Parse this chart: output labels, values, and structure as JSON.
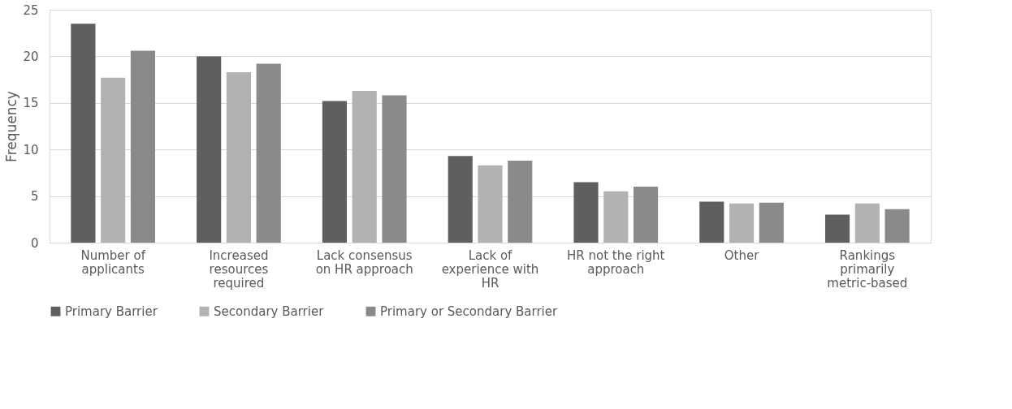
{
  "chart_data": {
    "type": "bar",
    "ylabel": "Frequency",
    "categories": [
      "Number of applicants",
      "Increased resources required",
      "Lack consensus on HR approach",
      "Lack of experience with HR",
      "HR not the right approach",
      "Other",
      "Rankings primarily metric-based"
    ],
    "series": [
      {
        "name": "Primary Barrier",
        "color": "#5f5f5f",
        "values": [
          23.5,
          20.0,
          15.2,
          9.3,
          6.5,
          4.4,
          3.0
        ]
      },
      {
        "name": "Secondary Barrier",
        "color": "#b2b2b2",
        "values": [
          17.7,
          18.3,
          16.3,
          8.3,
          5.5,
          4.2,
          4.2
        ]
      },
      {
        "name": "Primary or Secondary Barrier",
        "color": "#8a8a8a",
        "values": [
          20.6,
          19.2,
          15.8,
          8.8,
          6.0,
          4.3,
          3.6
        ]
      }
    ],
    "ylim": [
      0,
      25
    ],
    "yticks": [
      0,
      5,
      10,
      15,
      20,
      25
    ],
    "grid": "y",
    "legend": "bottom"
  }
}
